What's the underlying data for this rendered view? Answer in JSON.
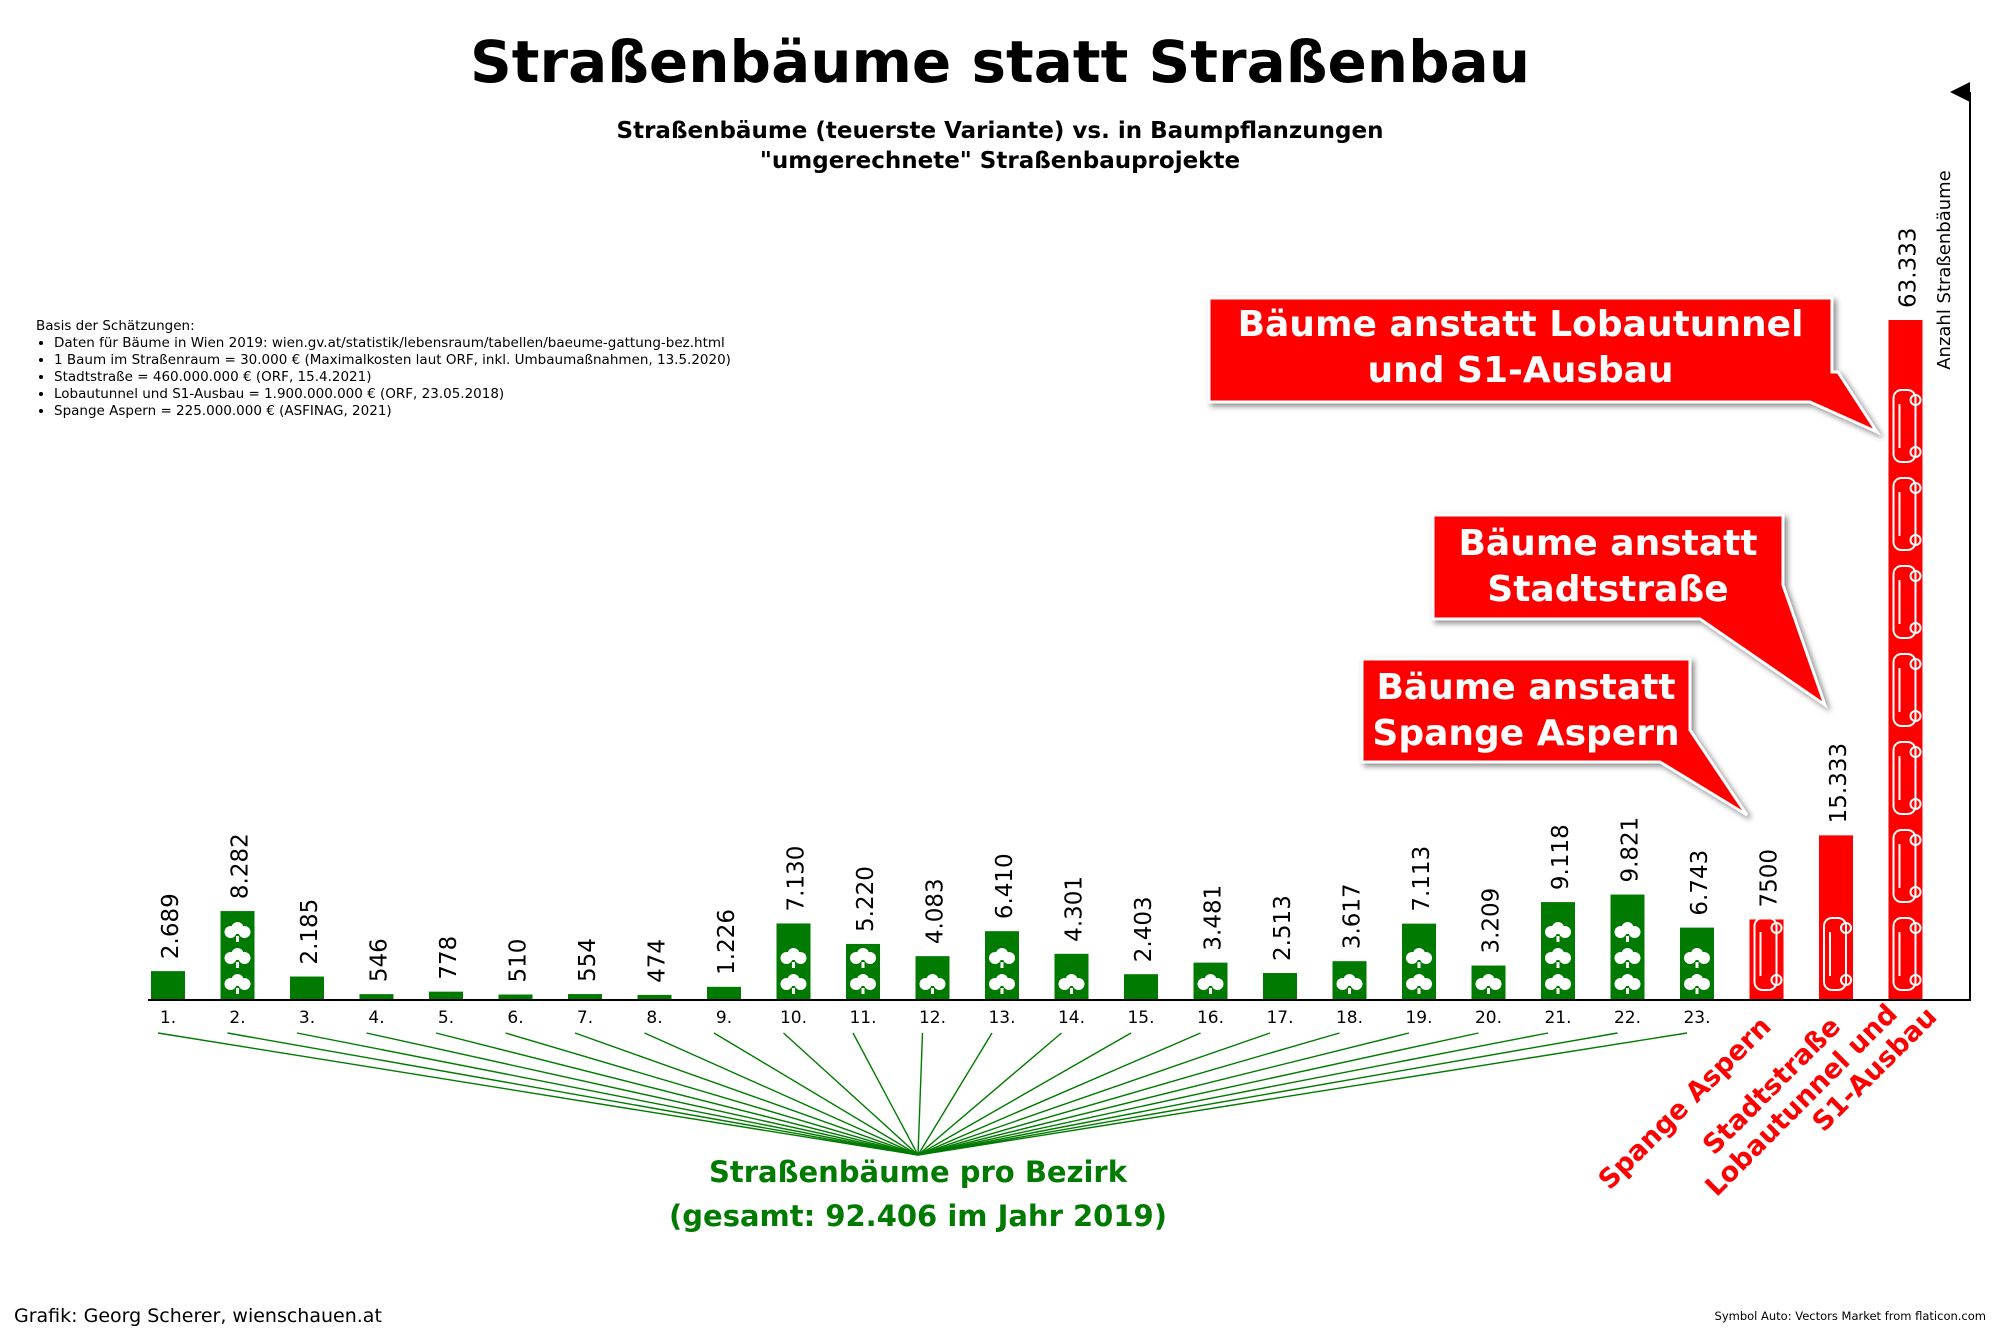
{
  "title": "Straßenbäume statt Straßenbau",
  "subtitle_line1": "Straßenbäume (teuerste Variante) vs. in Baumpflanzungen",
  "subtitle_line2": "\"umgerechnete\" Straßenbauprojekte",
  "basis": {
    "heading": "Basis der Schätzungen:",
    "items": [
      "Daten für Bäume in Wien 2019: wien.gv.at/statistik/lebensraum/tabellen/baeume-gattung-bez.html",
      "1 Baum im Straßenraum = 30.000 € (Maximalkosten laut ORF, inkl. Umbaumaßnahmen, 13.5.2020)",
      "Stadtstraße = 460.000.000 € (ORF, 15.4.2021)",
      "Lobautunnel und S1-Ausbau = 1.900.000.000 € (ORF, 23.05.2018)",
      "Spange Aspern = 225.000.000 € (ASFINAG, 2021)"
    ]
  },
  "callouts": {
    "lobau": "Bäume anstatt Lobautunnel und S1-Ausbau",
    "stadt": "Bäume anstatt Stadtstraße",
    "spange": "Bäume anstatt Spange Aspern"
  },
  "group_label_line1": "Straßenbäume pro Bezirk",
  "group_label_line2": "(gesamt: 92.406 im Jahr 2019)",
  "credit_left": "Grafik: Georg Scherer, wienschauen.at",
  "credit_right": "Symbol Auto: Vectors Market from flaticon.com",
  "colors": {
    "tree": "#007a00",
    "road": "#ff0000",
    "text": "#000000"
  },
  "icons": {
    "tree": "tree-icon",
    "road": "car-icon"
  },
  "chart_data": {
    "type": "bar",
    "ylabel": "Anzahl Straßenbäume",
    "categories": [
      "1.",
      "2.",
      "3.",
      "4.",
      "5.",
      "6.",
      "7.",
      "8.",
      "9.",
      "10.",
      "11.",
      "12.",
      "13.",
      "14.",
      "15.",
      "16.",
      "17.",
      "18.",
      "19.",
      "20.",
      "21.",
      "22.",
      "23.",
      "Spange Aspern",
      "Stadtstraße",
      "Lobautunnel und S1-Ausbau"
    ],
    "values": [
      2689,
      8282,
      2185,
      546,
      778,
      510,
      554,
      474,
      1226,
      7130,
      5220,
      4083,
      6410,
      4301,
      2403,
      3481,
      2513,
      3617,
      7113,
      3209,
      9118,
      9821,
      6743,
      7500,
      15333,
      63333
    ],
    "value_labels": [
      "2.689",
      "8.282",
      "2.185",
      "546",
      "778",
      "510",
      "554",
      "474",
      "1.226",
      "7.130",
      "5.220",
      "4.083",
      "6.410",
      "4.301",
      "2.403",
      "3.481",
      "2.513",
      "3.617",
      "7.113",
      "3.209",
      "9.118",
      "9.821",
      "6.743",
      "7500",
      "15.333",
      "63.333"
    ],
    "kind": [
      "tree",
      "tree",
      "tree",
      "tree",
      "tree",
      "tree",
      "tree",
      "tree",
      "tree",
      "tree",
      "tree",
      "tree",
      "tree",
      "tree",
      "tree",
      "tree",
      "tree",
      "tree",
      "tree",
      "tree",
      "tree",
      "tree",
      "tree",
      "road",
      "road",
      "road"
    ],
    "ylim": [
      0,
      63333
    ],
    "grid": false
  }
}
